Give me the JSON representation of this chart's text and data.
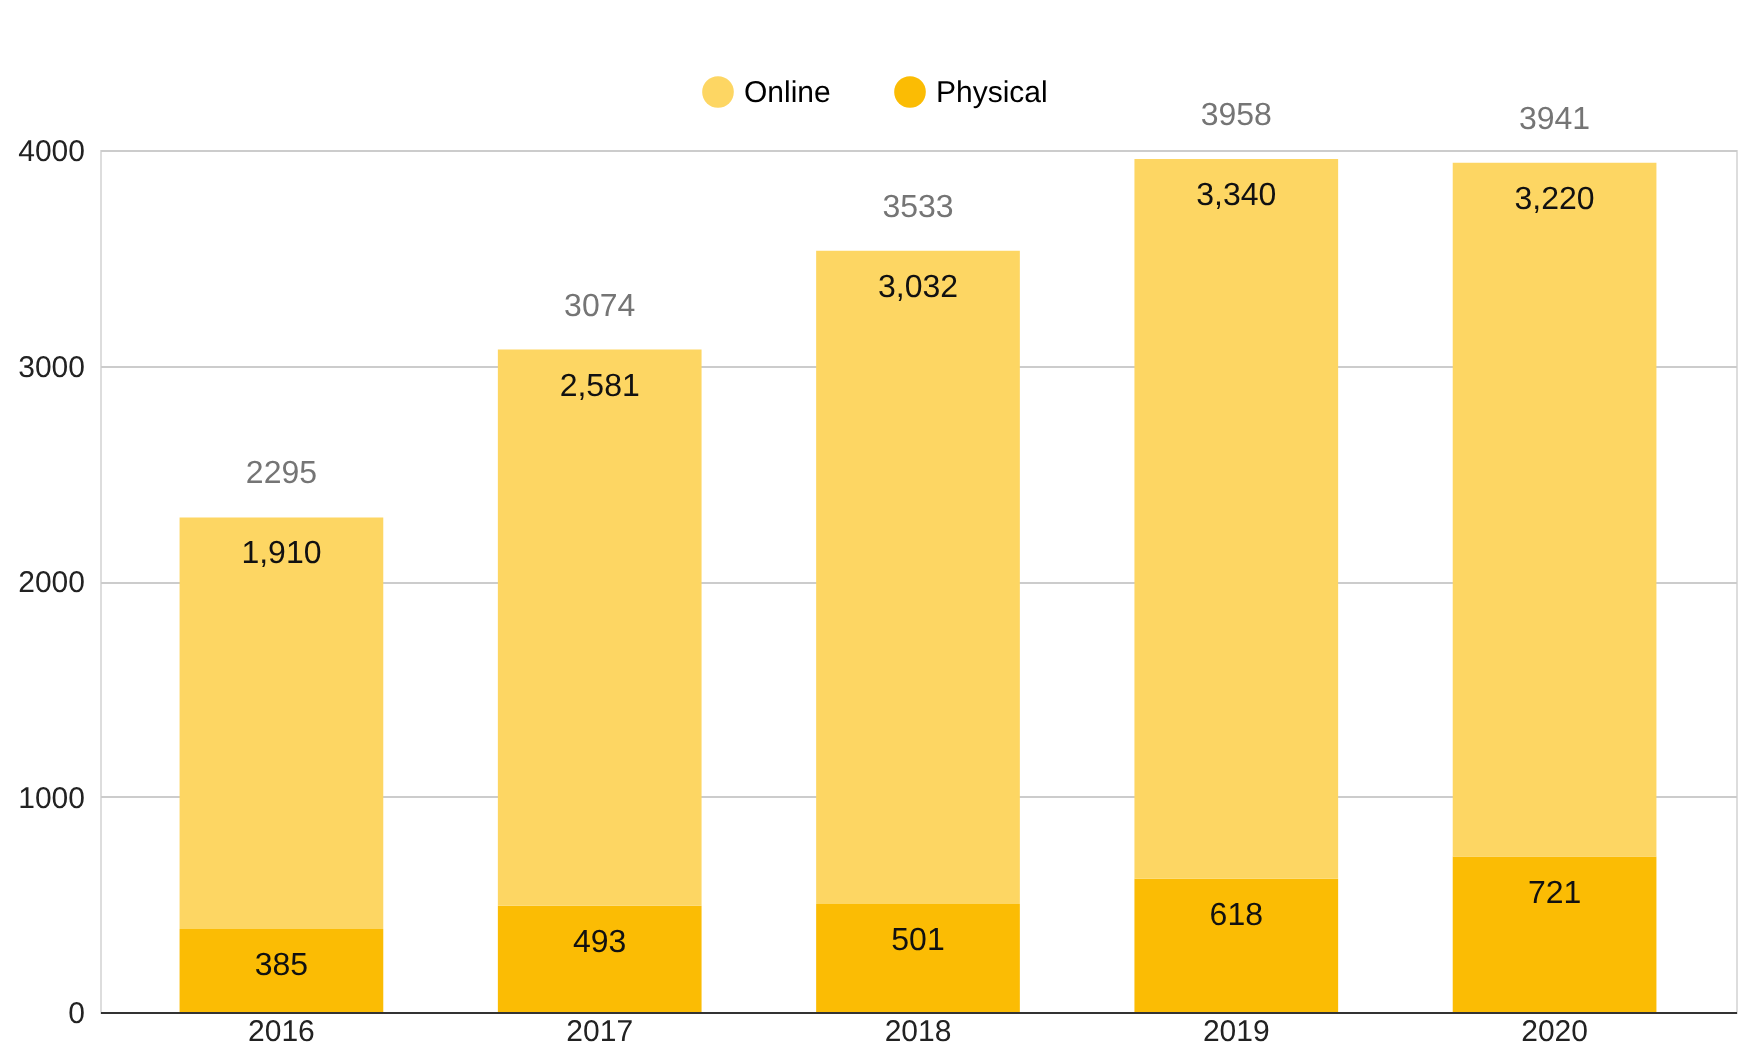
{
  "chart_data": {
    "type": "bar",
    "stacked": true,
    "categories": [
      "2016",
      "2017",
      "2018",
      "2019",
      "2020"
    ],
    "series": [
      {
        "name": "Physical",
        "color": "#fbbc04",
        "values": [
          385,
          493,
          501,
          618,
          721
        ],
        "value_labels": [
          "385",
          "493",
          "501",
          "618",
          "721"
        ]
      },
      {
        "name": "Online",
        "color": "#fdd663",
        "values": [
          1910,
          2581,
          3032,
          3340,
          3220
        ],
        "value_labels": [
          "1,910",
          "2,581",
          "3,032",
          "3,340",
          "3,220"
        ]
      }
    ],
    "totals": [
      "2295",
      "3074",
      "3533",
      "3958",
      "3941"
    ],
    "ylim": [
      0,
      4000
    ],
    "yticks": [
      0,
      1000,
      2000,
      3000,
      4000
    ],
    "grid": "y",
    "legend": "top"
  }
}
